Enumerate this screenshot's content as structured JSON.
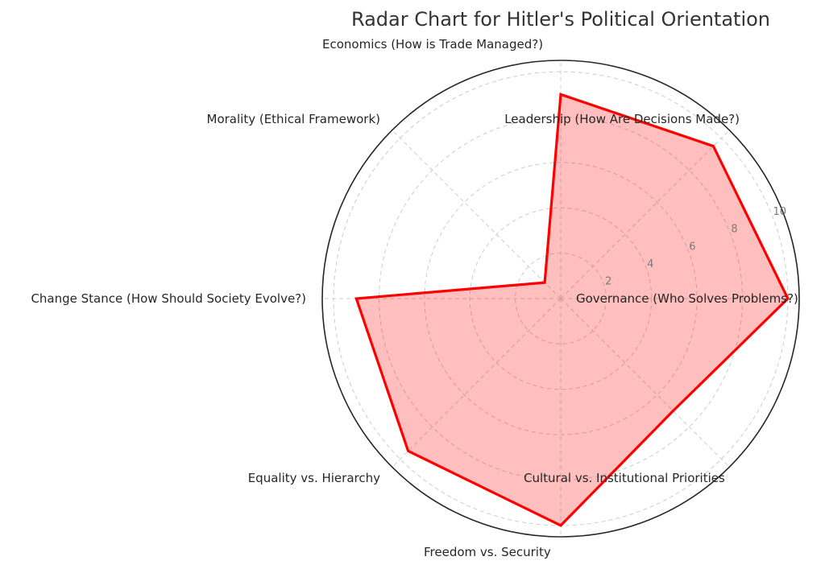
{
  "chart_data": {
    "type": "radar",
    "title": "Radar Chart for Hitler's Political Orientation",
    "categories": [
      "Governance (Who Solves Problems?)",
      "Leadership (How Are Decisions Made?)",
      "Economics (How is Trade Managed?)",
      "Morality (Ethical Framework)",
      "Change Stance (How Should Society Evolve?)",
      "Equality vs. Hierarchy",
      "Freedom vs. Security",
      "Cultural vs. Institutional Priorities"
    ],
    "series": [
      {
        "values": [
          10,
          9.5,
          9,
          1,
          9,
          9.5,
          10,
          7
        ],
        "color": "#ff0000"
      }
    ],
    "rlim": [
      0,
      10.5
    ],
    "rticks": [
      2,
      4,
      6,
      8,
      10
    ],
    "rtick_labels": [
      "2",
      "4",
      "6",
      "8",
      "10"
    ],
    "grid": true
  }
}
